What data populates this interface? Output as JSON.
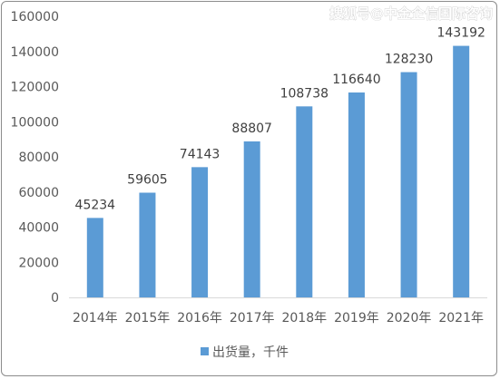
{
  "watermark": "搜狐号@中金企信国际咨询",
  "chart_data": {
    "type": "bar",
    "categories": [
      "2014年",
      "2015年",
      "2016年",
      "2017年",
      "2018年",
      "2019年",
      "2020年",
      "2021年"
    ],
    "series": [
      {
        "name": "出货量，千件",
        "values": [
          45234,
          59605,
          74143,
          88807,
          108738,
          116640,
          128230,
          143192
        ],
        "color": "#5b9bd5"
      }
    ],
    "data_labels": [
      "45234",
      "59605",
      "74143",
      "88807",
      "108738",
      "116640",
      "128230",
      "143192"
    ],
    "y_ticks": [
      0,
      20000,
      40000,
      60000,
      80000,
      100000,
      120000,
      140000,
      160000
    ],
    "y_tick_labels": [
      "0",
      "20000",
      "40000",
      "60000",
      "80000",
      "100000",
      "120000",
      "140000",
      "160000"
    ],
    "ylim": [
      0,
      160000
    ],
    "grid": false,
    "legend_position": "bottom"
  }
}
